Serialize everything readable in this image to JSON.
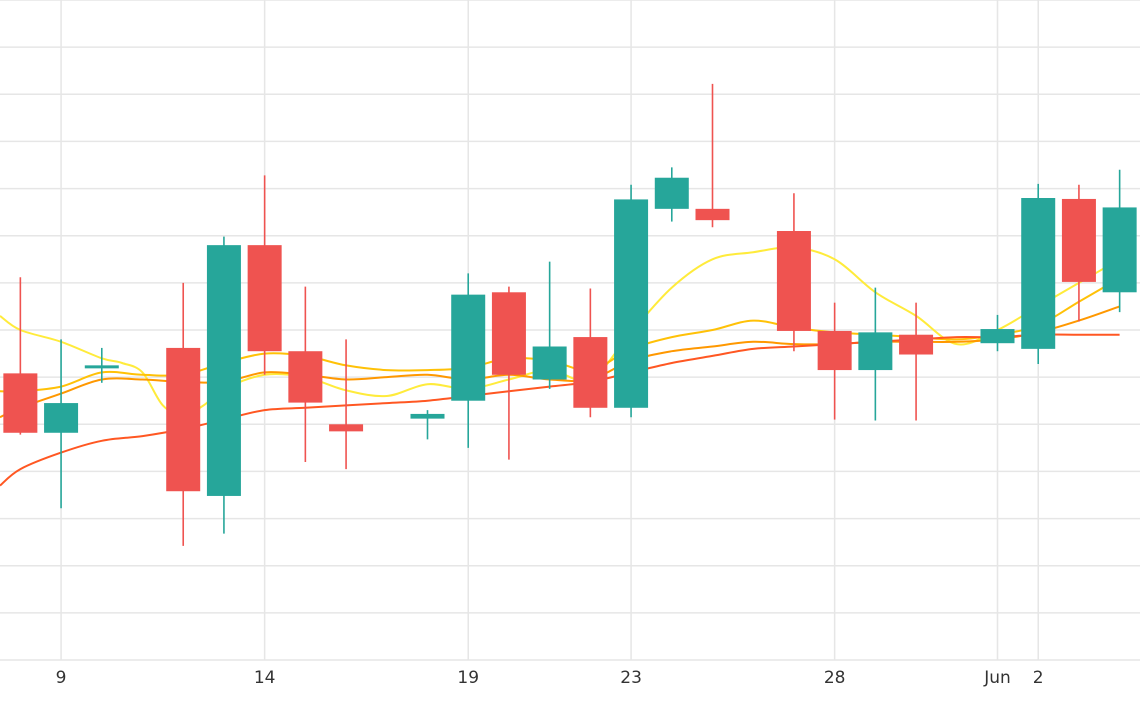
{
  "chart_data": {
    "type": "candlestick",
    "title": "",
    "xlabel": "",
    "ylabel": "",
    "grid": true,
    "x_ticks": [
      {
        "label": "9",
        "date": "2025-05-09"
      },
      {
        "label": "14",
        "date": "2025-05-14"
      },
      {
        "label": "19",
        "date": "2025-05-19"
      },
      {
        "label": "23",
        "date": "2025-05-23"
      },
      {
        "label": "28",
        "date": "2025-05-28"
      },
      {
        "label": "Jun",
        "date": "2025-06-01"
      },
      {
        "label": "2",
        "date": "2025-06-02"
      }
    ],
    "xlim": [
      "2025-05-07 12:00",
      "2025-06-04 12:00"
    ],
    "ylim": [
      0,
      14
    ],
    "candles": [
      {
        "date": "2025-05-08",
        "open": 6.08,
        "high": 8.12,
        "low": 4.78,
        "close": 4.82,
        "color": "#ef5350"
      },
      {
        "date": "2025-05-09",
        "open": 4.82,
        "high": 6.8,
        "low": 3.22,
        "close": 5.45,
        "color": "#26a69a"
      },
      {
        "date": "2025-05-10",
        "open": 6.25,
        "high": 6.62,
        "low": 5.88,
        "close": 6.22,
        "color": "#26a69a"
      },
      {
        "date": "2025-05-12",
        "open": 6.62,
        "high": 8.0,
        "low": 2.42,
        "close": 3.58,
        "color": "#ef5350"
      },
      {
        "date": "2025-05-13",
        "open": 3.48,
        "high": 8.98,
        "low": 2.68,
        "close": 8.8,
        "color": "#26a69a"
      },
      {
        "date": "2025-05-14",
        "open": 8.8,
        "high": 10.28,
        "low": 6.05,
        "close": 6.55,
        "color": "#ef5350"
      },
      {
        "date": "2025-05-15",
        "open": 6.55,
        "high": 7.92,
        "low": 4.2,
        "close": 5.46,
        "color": "#ef5350"
      },
      {
        "date": "2025-05-16",
        "open": 5.0,
        "high": 6.8,
        "low": 4.05,
        "close": 4.85,
        "color": "#ef5350"
      },
      {
        "date": "2025-05-18",
        "open": 5.12,
        "high": 5.3,
        "low": 4.68,
        "close": 5.22,
        "color": "#26a69a"
      },
      {
        "date": "2025-05-19",
        "open": 5.5,
        "high": 8.2,
        "low": 4.5,
        "close": 7.75,
        "color": "#26a69a"
      },
      {
        "date": "2025-05-20",
        "open": 7.8,
        "high": 7.92,
        "low": 4.25,
        "close": 6.05,
        "color": "#ef5350"
      },
      {
        "date": "2025-05-21",
        "open": 5.95,
        "high": 8.45,
        "low": 5.75,
        "close": 6.65,
        "color": "#26a69a"
      },
      {
        "date": "2025-05-22",
        "open": 6.85,
        "high": 7.88,
        "low": 5.15,
        "close": 5.35,
        "color": "#ef5350"
      },
      {
        "date": "2025-05-23",
        "open": 5.35,
        "high": 10.08,
        "low": 5.15,
        "close": 9.77,
        "color": "#26a69a"
      },
      {
        "date": "2025-05-24",
        "open": 9.57,
        "high": 10.45,
        "low": 9.3,
        "close": 10.23,
        "color": "#26a69a"
      },
      {
        "date": "2025-05-25",
        "open": 9.57,
        "high": 12.22,
        "low": 9.18,
        "close": 9.33,
        "color": "#ef5350"
      },
      {
        "date": "2025-05-27",
        "open": 9.1,
        "high": 9.9,
        "low": 6.55,
        "close": 6.98,
        "color": "#ef5350"
      },
      {
        "date": "2025-05-28",
        "open": 6.98,
        "high": 7.58,
        "low": 5.1,
        "close": 6.15,
        "color": "#ef5350"
      },
      {
        "date": "2025-05-29",
        "open": 6.15,
        "high": 7.9,
        "low": 5.08,
        "close": 6.95,
        "color": "#26a69a"
      },
      {
        "date": "2025-05-30",
        "open": 6.9,
        "high": 7.58,
        "low": 5.08,
        "close": 6.48,
        "color": "#ef5350"
      },
      {
        "date": "2025-06-01",
        "open": 6.72,
        "high": 7.32,
        "low": 6.55,
        "close": 7.02,
        "color": "#26a69a"
      },
      {
        "date": "2025-06-02",
        "open": 6.6,
        "high": 10.1,
        "low": 6.28,
        "close": 9.8,
        "color": "#26a69a"
      },
      {
        "date": "2025-06-03",
        "open": 9.78,
        "high": 10.08,
        "low": 7.18,
        "close": 8.02,
        "color": "#ef5350"
      },
      {
        "date": "2025-06-04",
        "open": 7.8,
        "high": 10.4,
        "low": 7.38,
        "close": 9.6,
        "color": "#26a69a"
      }
    ],
    "lines": [
      {
        "color": "#ffeb3b",
        "points": [
          [
            "2025-05-07 12:00",
            7.3
          ],
          [
            "2025-05-08",
            7.0
          ],
          [
            "2025-05-09",
            6.75
          ],
          [
            "2025-05-10",
            6.4
          ],
          [
            "2025-05-10 12:00",
            6.3
          ],
          [
            "2025-05-11",
            6.1
          ],
          [
            "2025-05-11 12:00",
            5.4
          ],
          [
            "2025-05-12",
            5.2
          ],
          [
            "2025-05-12 12:00",
            5.4
          ],
          [
            "2025-05-13",
            5.75
          ],
          [
            "2025-05-14",
            6.05
          ],
          [
            "2025-05-15",
            6.0
          ],
          [
            "2025-05-16",
            5.72
          ],
          [
            "2025-05-17",
            5.6
          ],
          [
            "2025-05-18",
            5.85
          ],
          [
            "2025-05-19",
            5.75
          ],
          [
            "2025-05-20",
            5.95
          ],
          [
            "2025-05-21",
            6.15
          ],
          [
            "2025-05-22",
            5.95
          ],
          [
            "2025-05-23",
            6.95
          ],
          [
            "2025-05-24",
            7.9
          ],
          [
            "2025-05-25",
            8.5
          ],
          [
            "2025-05-26",
            8.65
          ],
          [
            "2025-05-27",
            8.75
          ],
          [
            "2025-05-28",
            8.5
          ],
          [
            "2025-05-29",
            7.8
          ],
          [
            "2025-05-30",
            7.3
          ],
          [
            "2025-05-31",
            6.7
          ],
          [
            "2025-06-01",
            7.0
          ],
          [
            "2025-06-02",
            7.5
          ],
          [
            "2025-06-03",
            8.0
          ],
          [
            "2025-06-04",
            8.5
          ]
        ]
      },
      {
        "color": "#ffc107",
        "points": [
          [
            "2025-05-07 12:00",
            5.7
          ],
          [
            "2025-05-08",
            5.7
          ],
          [
            "2025-05-09",
            5.8
          ],
          [
            "2025-05-10",
            6.1
          ],
          [
            "2025-05-11",
            6.05
          ],
          [
            "2025-05-12",
            6.05
          ],
          [
            "2025-05-13",
            6.3
          ],
          [
            "2025-05-14",
            6.5
          ],
          [
            "2025-05-15",
            6.45
          ],
          [
            "2025-05-16",
            6.25
          ],
          [
            "2025-05-17",
            6.15
          ],
          [
            "2025-05-18",
            6.15
          ],
          [
            "2025-05-19",
            6.2
          ],
          [
            "2025-05-20",
            6.4
          ],
          [
            "2025-05-21",
            6.35
          ],
          [
            "2025-05-22",
            6.15
          ],
          [
            "2025-05-23",
            6.6
          ],
          [
            "2025-05-24",
            6.85
          ],
          [
            "2025-05-25",
            7.0
          ],
          [
            "2025-05-26",
            7.2
          ],
          [
            "2025-05-27",
            7.05
          ],
          [
            "2025-05-28",
            6.95
          ],
          [
            "2025-05-29",
            6.9
          ],
          [
            "2025-05-30",
            6.85
          ],
          [
            "2025-05-31",
            6.8
          ],
          [
            "2025-06-01",
            6.9
          ],
          [
            "2025-06-02",
            7.1
          ],
          [
            "2025-06-03",
            7.6
          ],
          [
            "2025-06-04",
            8.1
          ]
        ]
      },
      {
        "color": "#ff9800",
        "points": [
          [
            "2025-05-07 12:00",
            5.15
          ],
          [
            "2025-05-08",
            5.35
          ],
          [
            "2025-05-09",
            5.65
          ],
          [
            "2025-05-10",
            5.95
          ],
          [
            "2025-05-11",
            5.95
          ],
          [
            "2025-05-12",
            5.9
          ],
          [
            "2025-05-13",
            5.9
          ],
          [
            "2025-05-14",
            6.1
          ],
          [
            "2025-05-15",
            6.05
          ],
          [
            "2025-05-16",
            5.95
          ],
          [
            "2025-05-17",
            6.0
          ],
          [
            "2025-05-18",
            6.05
          ],
          [
            "2025-05-19",
            5.95
          ],
          [
            "2025-05-20",
            6.05
          ],
          [
            "2025-05-21",
            5.95
          ],
          [
            "2025-05-22",
            5.95
          ],
          [
            "2025-05-23",
            6.35
          ],
          [
            "2025-05-24",
            6.55
          ],
          [
            "2025-05-25",
            6.65
          ],
          [
            "2025-05-26",
            6.75
          ],
          [
            "2025-05-27",
            6.7
          ],
          [
            "2025-05-28",
            6.7
          ],
          [
            "2025-05-29",
            6.75
          ],
          [
            "2025-05-30",
            6.75
          ],
          [
            "2025-05-31",
            6.75
          ],
          [
            "2025-06-01",
            6.8
          ],
          [
            "2025-06-02",
            6.95
          ],
          [
            "2025-06-03",
            7.2
          ],
          [
            "2025-06-04",
            7.5
          ]
        ]
      },
      {
        "color": "#ff5722",
        "points": [
          [
            "2025-05-07 12:00",
            3.7
          ],
          [
            "2025-05-08",
            4.05
          ],
          [
            "2025-05-09",
            4.4
          ],
          [
            "2025-05-10",
            4.65
          ],
          [
            "2025-05-11",
            4.75
          ],
          [
            "2025-05-12",
            4.9
          ],
          [
            "2025-05-13",
            5.1
          ],
          [
            "2025-05-14",
            5.3
          ],
          [
            "2025-05-15",
            5.35
          ],
          [
            "2025-05-16",
            5.4
          ],
          [
            "2025-05-17",
            5.45
          ],
          [
            "2025-05-18",
            5.5
          ],
          [
            "2025-05-19",
            5.6
          ],
          [
            "2025-05-20",
            5.7
          ],
          [
            "2025-05-21",
            5.8
          ],
          [
            "2025-05-22",
            5.9
          ],
          [
            "2025-05-23",
            6.1
          ],
          [
            "2025-05-24",
            6.3
          ],
          [
            "2025-05-25",
            6.45
          ],
          [
            "2025-05-26",
            6.6
          ],
          [
            "2025-05-27",
            6.65
          ],
          [
            "2025-05-28",
            6.7
          ],
          [
            "2025-05-29",
            6.75
          ],
          [
            "2025-05-30",
            6.8
          ],
          [
            "2025-05-31",
            6.85
          ],
          [
            "2025-06-01",
            6.85
          ],
          [
            "2025-06-02",
            6.9
          ],
          [
            "2025-06-03",
            6.9
          ],
          [
            "2025-06-04",
            6.9
          ]
        ]
      }
    ]
  }
}
